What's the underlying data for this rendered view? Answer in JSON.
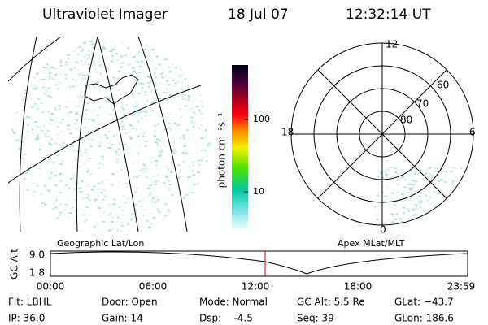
{
  "header": {
    "title": "Ultraviolet Imager",
    "date": "18 Jul 07",
    "time": "12:32:14 UT"
  },
  "colorbar": {
    "label": "photon cm⁻²s⁻¹",
    "ticks": [
      "100",
      "10"
    ]
  },
  "polar": {
    "labels": [
      "12",
      "60",
      "70",
      "80",
      "18",
      "6",
      "0"
    ]
  },
  "panels": {
    "left": "Geographic Lat/Lon",
    "right": "Apex MLat/MLT"
  },
  "altitude": {
    "label": "GC Alt",
    "yticks": [
      "9.0",
      "1.8"
    ],
    "xticks": [
      "00:00",
      "06:00",
      "12:00",
      "18:00",
      "23:59"
    ]
  },
  "info": [
    [
      "Flt: LBHL",
      "Door: Open",
      "Mode: Normal",
      "GC Alt: 5.5 Re",
      "GLat: −43.7"
    ],
    [
      "IP: 36.0",
      "Gain: 14",
      "Dsp:    -4.5",
      "Seq: 39",
      "GLon: 186.6"
    ]
  ]
}
